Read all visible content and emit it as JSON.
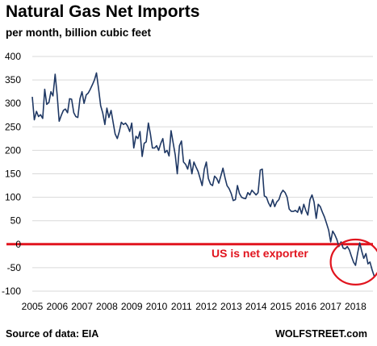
{
  "chart_data": {
    "type": "line",
    "title": "Natural Gas Net Imports",
    "subtitle": "per month, billion cubic feet",
    "xlabel": "",
    "ylabel": "",
    "xlim": [
      2005,
      2018.75
    ],
    "ylim": [
      -100,
      400
    ],
    "yticks": [
      400,
      350,
      300,
      250,
      200,
      150,
      100,
      50,
      0,
      -50,
      -100
    ],
    "xticks": [
      "2005",
      "2006",
      "2007",
      "2008",
      "2009",
      "2010",
      "2011",
      "2012",
      "2013",
      "2014",
      "2015",
      "2016",
      "2017",
      "2018"
    ],
    "grid": "horizontal",
    "series": [
      {
        "color": "#1f3864",
        "points": [
          [
            2005.0,
            314
          ],
          [
            2005.08,
            265
          ],
          [
            2005.17,
            283
          ],
          [
            2005.25,
            272
          ],
          [
            2005.33,
            276
          ],
          [
            2005.42,
            268
          ],
          [
            2005.5,
            330
          ],
          [
            2005.58,
            298
          ],
          [
            2005.67,
            302
          ],
          [
            2005.75,
            325
          ],
          [
            2005.83,
            316
          ],
          [
            2005.92,
            362
          ],
          [
            2006.0,
            318
          ],
          [
            2006.08,
            262
          ],
          [
            2006.17,
            275
          ],
          [
            2006.25,
            285
          ],
          [
            2006.33,
            288
          ],
          [
            2006.42,
            280
          ],
          [
            2006.5,
            310
          ],
          [
            2006.58,
            309
          ],
          [
            2006.67,
            280
          ],
          [
            2006.75,
            272
          ],
          [
            2006.83,
            270
          ],
          [
            2006.92,
            310
          ],
          [
            2007.0,
            325
          ],
          [
            2007.08,
            300
          ],
          [
            2007.17,
            318
          ],
          [
            2007.25,
            322
          ],
          [
            2007.33,
            330
          ],
          [
            2007.42,
            340
          ],
          [
            2007.5,
            350
          ],
          [
            2007.58,
            365
          ],
          [
            2007.67,
            330
          ],
          [
            2007.75,
            295
          ],
          [
            2007.83,
            280
          ],
          [
            2007.92,
            255
          ],
          [
            2008.0,
            290
          ],
          [
            2008.08,
            270
          ],
          [
            2008.17,
            285
          ],
          [
            2008.25,
            260
          ],
          [
            2008.33,
            235
          ],
          [
            2008.42,
            225
          ],
          [
            2008.5,
            240
          ],
          [
            2008.58,
            260
          ],
          [
            2008.67,
            255
          ],
          [
            2008.75,
            258
          ],
          [
            2008.83,
            252
          ],
          [
            2008.92,
            240
          ],
          [
            2009.0,
            258
          ],
          [
            2009.08,
            205
          ],
          [
            2009.17,
            230
          ],
          [
            2009.25,
            225
          ],
          [
            2009.33,
            240
          ],
          [
            2009.42,
            187
          ],
          [
            2009.5,
            215
          ],
          [
            2009.58,
            218
          ],
          [
            2009.67,
            258
          ],
          [
            2009.75,
            235
          ],
          [
            2009.83,
            205
          ],
          [
            2009.92,
            205
          ],
          [
            2010.0,
            210
          ],
          [
            2010.08,
            200
          ],
          [
            2010.17,
            215
          ],
          [
            2010.25,
            225
          ],
          [
            2010.33,
            195
          ],
          [
            2010.42,
            200
          ],
          [
            2010.5,
            188
          ],
          [
            2010.58,
            242
          ],
          [
            2010.67,
            215
          ],
          [
            2010.75,
            190
          ],
          [
            2010.83,
            150
          ],
          [
            2010.92,
            210
          ],
          [
            2011.0,
            220
          ],
          [
            2011.08,
            175
          ],
          [
            2011.17,
            170
          ],
          [
            2011.25,
            160
          ],
          [
            2011.33,
            180
          ],
          [
            2011.42,
            150
          ],
          [
            2011.5,
            175
          ],
          [
            2011.58,
            165
          ],
          [
            2011.67,
            155
          ],
          [
            2011.75,
            140
          ],
          [
            2011.83,
            125
          ],
          [
            2011.92,
            160
          ],
          [
            2012.0,
            175
          ],
          [
            2012.08,
            140
          ],
          [
            2012.17,
            128
          ],
          [
            2012.25,
            125
          ],
          [
            2012.33,
            145
          ],
          [
            2012.42,
            140
          ],
          [
            2012.5,
            130
          ],
          [
            2012.58,
            145
          ],
          [
            2012.67,
            162
          ],
          [
            2012.75,
            142
          ],
          [
            2012.83,
            125
          ],
          [
            2012.92,
            118
          ],
          [
            2013.0,
            108
          ],
          [
            2013.08,
            93
          ],
          [
            2013.17,
            95
          ],
          [
            2013.25,
            125
          ],
          [
            2013.33,
            108
          ],
          [
            2013.42,
            100
          ],
          [
            2013.5,
            98
          ],
          [
            2013.58,
            97
          ],
          [
            2013.67,
            110
          ],
          [
            2013.75,
            105
          ],
          [
            2013.83,
            115
          ],
          [
            2013.92,
            110
          ],
          [
            2014.0,
            105
          ],
          [
            2014.08,
            110
          ],
          [
            2014.17,
            158
          ],
          [
            2014.25,
            160
          ],
          [
            2014.33,
            103
          ],
          [
            2014.42,
            100
          ],
          [
            2014.5,
            88
          ],
          [
            2014.58,
            80
          ],
          [
            2014.67,
            95
          ],
          [
            2014.75,
            80
          ],
          [
            2014.83,
            90
          ],
          [
            2014.92,
            95
          ],
          [
            2015.0,
            108
          ],
          [
            2015.08,
            115
          ],
          [
            2015.17,
            110
          ],
          [
            2015.25,
            100
          ],
          [
            2015.33,
            75
          ],
          [
            2015.42,
            70
          ],
          [
            2015.5,
            70
          ],
          [
            2015.58,
            72
          ],
          [
            2015.67,
            68
          ],
          [
            2015.75,
            80
          ],
          [
            2015.83,
            65
          ],
          [
            2015.92,
            85
          ],
          [
            2016.0,
            72
          ],
          [
            2016.08,
            62
          ],
          [
            2016.17,
            95
          ],
          [
            2016.25,
            105
          ],
          [
            2016.33,
            90
          ],
          [
            2016.42,
            55
          ],
          [
            2016.5,
            85
          ],
          [
            2016.58,
            80
          ],
          [
            2016.67,
            68
          ],
          [
            2016.75,
            58
          ],
          [
            2016.83,
            45
          ],
          [
            2016.92,
            30
          ],
          [
            2017.0,
            5
          ],
          [
            2017.08,
            28
          ],
          [
            2017.17,
            20
          ],
          [
            2017.25,
            10
          ],
          [
            2017.33,
            -5
          ],
          [
            2017.42,
            5
          ],
          [
            2017.5,
            -8
          ],
          [
            2017.58,
            -10
          ],
          [
            2017.67,
            -5
          ],
          [
            2017.75,
            -12
          ],
          [
            2017.83,
            -25
          ],
          [
            2017.92,
            -38
          ],
          [
            2018.0,
            -45
          ],
          [
            2018.08,
            -20
          ],
          [
            2018.17,
            3
          ],
          [
            2018.25,
            -15
          ],
          [
            2018.33,
            -30
          ],
          [
            2018.42,
            -20
          ],
          [
            2018.5,
            -42
          ],
          [
            2018.58,
            -38
          ],
          [
            2018.67,
            -55
          ],
          [
            2018.75,
            -68
          ]
        ]
      }
    ],
    "zero_line_color": "#e1141e",
    "annotation": {
      "text": "US is net exporter",
      "color": "#e1141e",
      "circle_center": [
        2018.0,
        -38
      ],
      "circle_radius_x_years": 1.0,
      "circle_radius_y_units": 48
    }
  },
  "footer": {
    "source": "Source of data: EIA",
    "watermark": "WOLFSTREET.com"
  }
}
